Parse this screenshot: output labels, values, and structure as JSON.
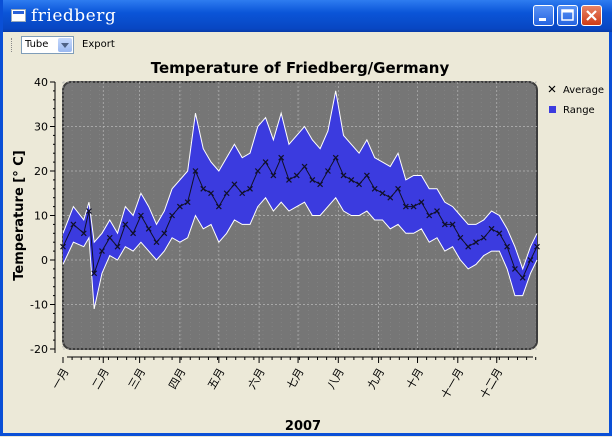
{
  "window": {
    "title": "friedberg",
    "minimize_icon": "minimize-icon",
    "maximize_icon": "maximize-icon",
    "close_icon": "close-icon"
  },
  "toolbar": {
    "mode_select": "Tube",
    "export_label": "Export"
  },
  "colors": {
    "canvas": "#767676",
    "range": "#3b3bdf",
    "range_edge": "#ffffff",
    "average": "#101028"
  },
  "chart_data": {
    "type": "area",
    "title": "Temperature of Friedberg/Germany",
    "xlabel": "2007",
    "ylabel": "Temperature [° C]",
    "ylim": [
      -20,
      40
    ],
    "yticks": [
      -20,
      -10,
      0,
      10,
      20,
      30,
      40
    ],
    "xlim": [
      0,
      365
    ],
    "categories": [
      "一月",
      "二月",
      "三月",
      "四月",
      "五月",
      "六月",
      "七月",
      "八月",
      "九月",
      "十月",
      "十一月",
      "十二月"
    ],
    "month_start_day": [
      0,
      31,
      59,
      90,
      120,
      151,
      181,
      212,
      243,
      273,
      304,
      334
    ],
    "grid": true,
    "legend": {
      "position": "top-right",
      "entries": [
        "Average",
        "Range"
      ]
    },
    "series": [
      {
        "name": "Average",
        "marker": "x",
        "x": [
          0,
          8,
          16,
          20,
          24,
          30,
          36,
          42,
          48,
          54,
          60,
          66,
          72,
          78,
          84,
          90,
          96,
          102,
          108,
          114,
          120,
          126,
          132,
          138,
          144,
          150,
          156,
          162,
          168,
          174,
          180,
          186,
          192,
          198,
          204,
          210,
          216,
          222,
          228,
          234,
          240,
          246,
          252,
          258,
          264,
          270,
          276,
          282,
          288,
          294,
          300,
          306,
          312,
          318,
          324,
          330,
          336,
          342,
          348,
          354,
          360,
          365
        ],
        "y": [
          3,
          8,
          6,
          11,
          -3,
          2,
          5,
          3,
          8,
          6,
          10,
          7,
          4,
          6,
          10,
          12,
          13,
          20,
          16,
          15,
          12,
          15,
          17,
          15,
          16,
          20,
          22,
          19,
          23,
          18,
          19,
          21,
          18,
          17,
          20,
          23,
          19,
          18,
          17,
          19,
          16,
          15,
          14,
          16,
          12,
          12,
          13,
          10,
          11,
          8,
          8,
          5,
          3,
          4,
          5,
          7,
          6,
          3,
          -2,
          -4,
          0,
          3
        ]
      },
      {
        "name": "Range (min)",
        "x": [
          0,
          8,
          16,
          20,
          24,
          30,
          36,
          42,
          48,
          54,
          60,
          66,
          72,
          78,
          84,
          90,
          96,
          102,
          108,
          114,
          120,
          126,
          132,
          138,
          144,
          150,
          156,
          162,
          168,
          174,
          180,
          186,
          192,
          198,
          204,
          210,
          216,
          222,
          228,
          234,
          240,
          246,
          252,
          258,
          264,
          270,
          276,
          282,
          288,
          294,
          300,
          306,
          312,
          318,
          324,
          330,
          336,
          342,
          348,
          354,
          360,
          365
        ],
        "y": [
          -1,
          4,
          3,
          5,
          -11,
          -3,
          1,
          0,
          3,
          2,
          4,
          2,
          0,
          2,
          5,
          4,
          5,
          10,
          7,
          8,
          4,
          6,
          9,
          8,
          8,
          12,
          14,
          11,
          13,
          11,
          12,
          13,
          10,
          10,
          12,
          14,
          11,
          10,
          10,
          11,
          9,
          9,
          7,
          8,
          6,
          6,
          7,
          4,
          5,
          2,
          3,
          0,
          -2,
          -1,
          1,
          2,
          2,
          -2,
          -8,
          -8,
          -3,
          0
        ]
      },
      {
        "name": "Range (max)",
        "x": [
          0,
          8,
          16,
          20,
          24,
          30,
          36,
          42,
          48,
          54,
          60,
          66,
          72,
          78,
          84,
          90,
          96,
          102,
          108,
          114,
          120,
          126,
          132,
          138,
          144,
          150,
          156,
          162,
          168,
          174,
          180,
          186,
          192,
          198,
          204,
          210,
          216,
          222,
          228,
          234,
          240,
          246,
          252,
          258,
          264,
          270,
          276,
          282,
          288,
          294,
          300,
          306,
          312,
          318,
          324,
          330,
          336,
          342,
          348,
          354,
          360,
          365
        ],
        "y": [
          6,
          12,
          9,
          13,
          4,
          6,
          9,
          6,
          12,
          10,
          15,
          12,
          8,
          11,
          16,
          18,
          20,
          33,
          25,
          22,
          20,
          23,
          26,
          23,
          24,
          30,
          32,
          27,
          33,
          26,
          28,
          30,
          27,
          25,
          29,
          38,
          28,
          26,
          24,
          27,
          23,
          22,
          21,
          24,
          18,
          19,
          19,
          16,
          16,
          13,
          12,
          10,
          8,
          8,
          9,
          11,
          10,
          7,
          3,
          -2,
          3,
          6
        ]
      }
    ]
  }
}
